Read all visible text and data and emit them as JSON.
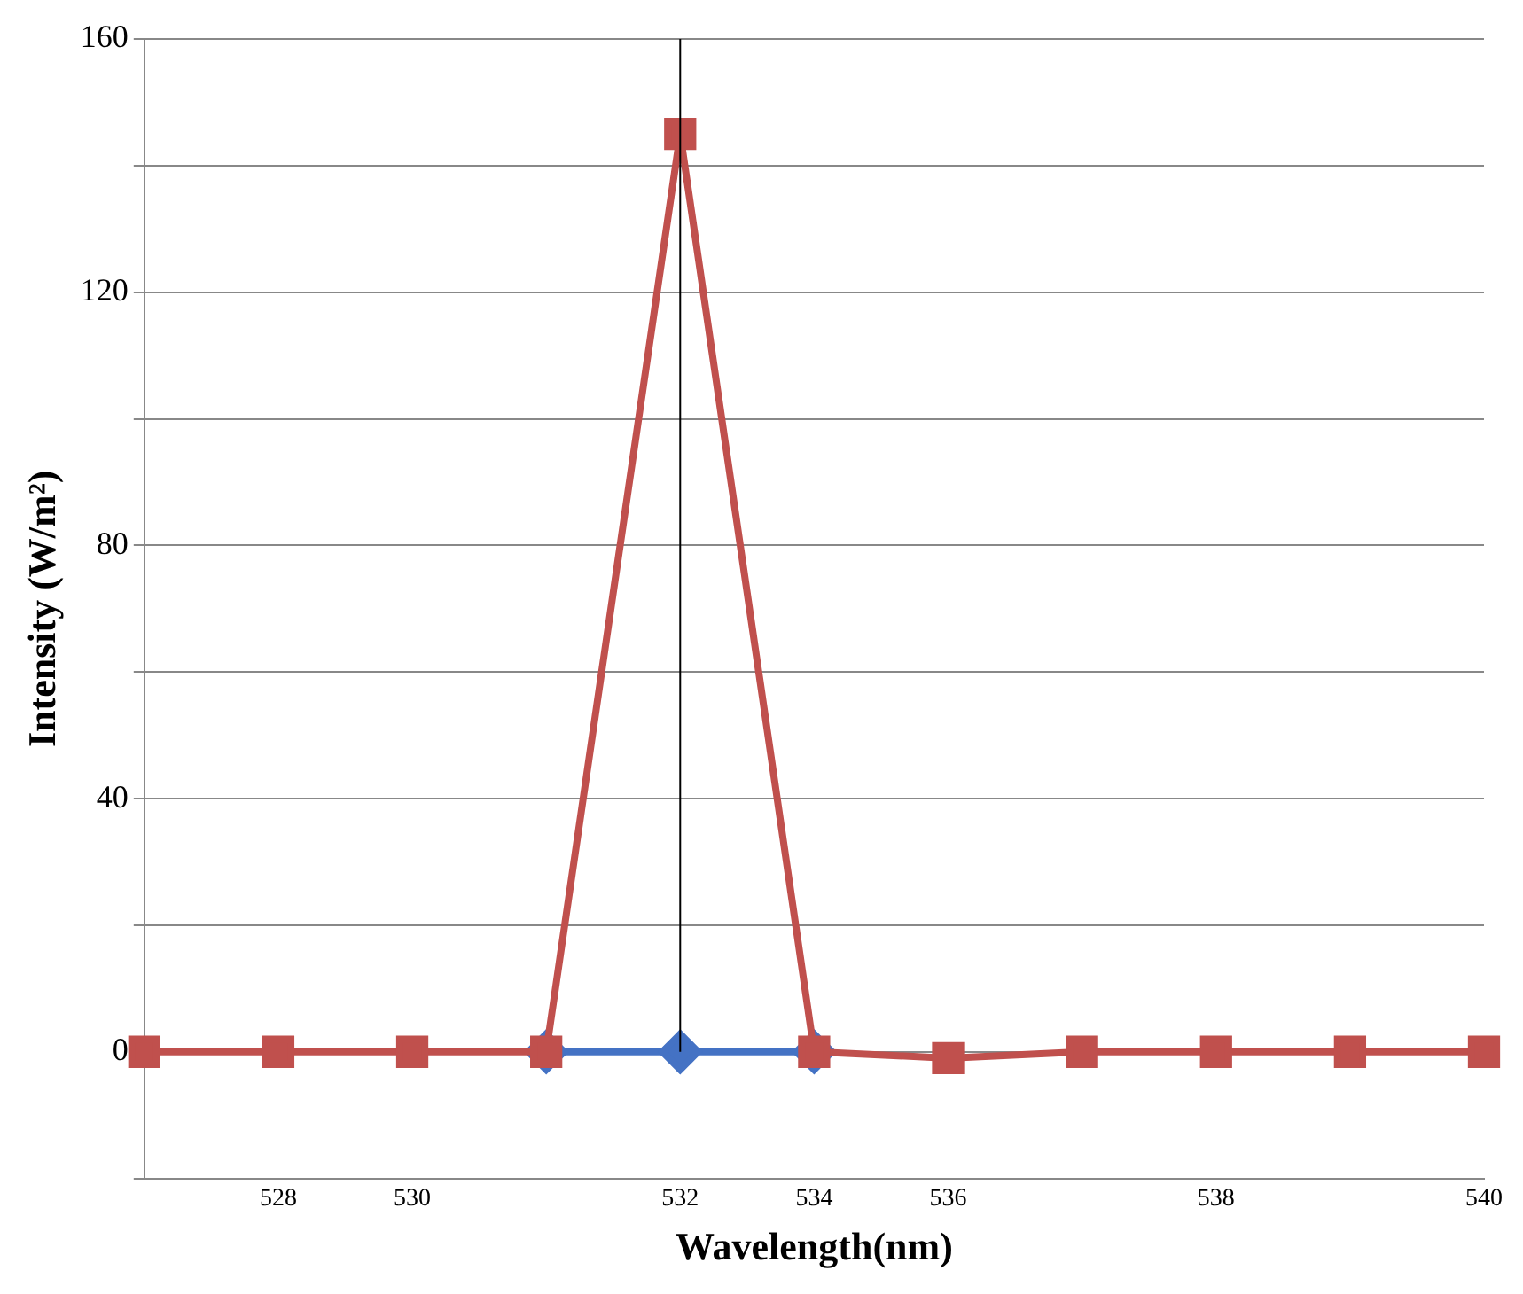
{
  "chart_data": {
    "type": "line",
    "xlabel": "Wavelength(nm)",
    "ylabel": "Intensity (W/m²)",
    "categories": [
      null,
      "528",
      "530",
      null,
      "532",
      "534",
      "536",
      null,
      "538",
      null,
      "540"
    ],
    "series": [
      {
        "color": "#4472c4",
        "marker": "diamond",
        "values": [
          null,
          null,
          null,
          0,
          0,
          0,
          null,
          null,
          null,
          null,
          null
        ]
      },
      {
        "color": "#c0504d",
        "marker": "square",
        "values": [
          0,
          0,
          0,
          0,
          145,
          0,
          -1,
          0,
          0,
          0,
          0
        ]
      }
    ],
    "ylim": [
      -20,
      160
    ],
    "yticks": [
      {
        "value": -20,
        "label": null
      },
      0,
      {
        "value": 20,
        "label": null
      },
      40,
      {
        "value": 60,
        "label": null
      },
      80,
      {
        "value": 100,
        "label": null
      },
      120,
      {
        "value": 140,
        "label": null
      },
      160
    ],
    "ref_lines": [
      {
        "axis": "x",
        "value": "532",
        "color": "#000000"
      }
    ],
    "grid": "y",
    "legend": false
  }
}
